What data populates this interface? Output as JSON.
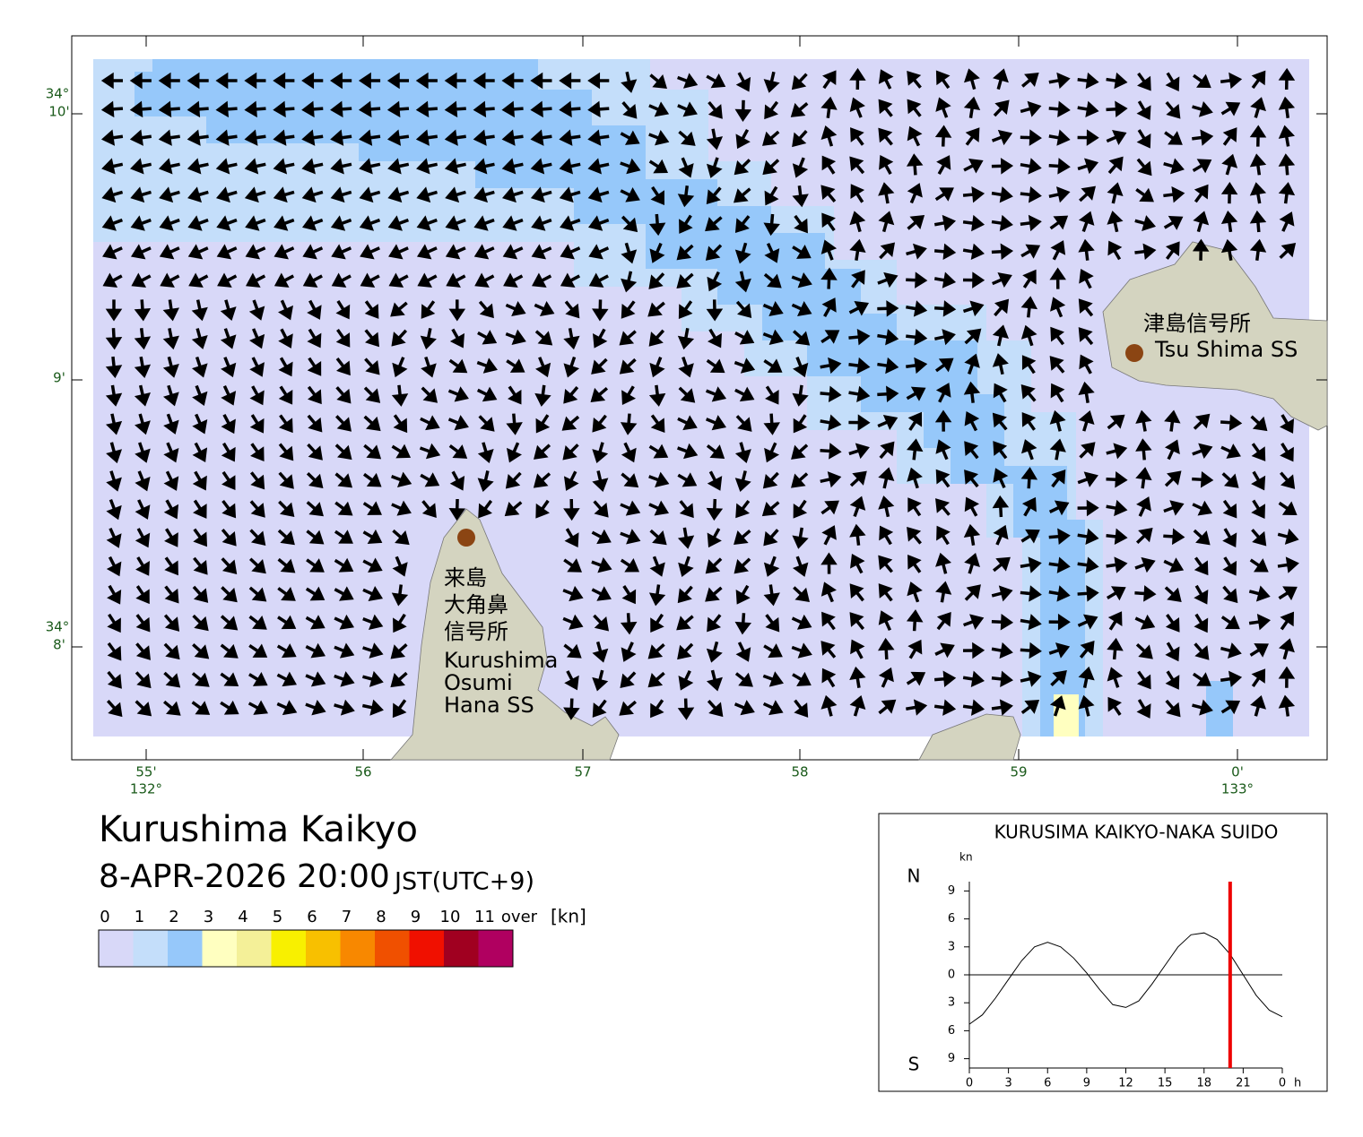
{
  "map": {
    "lat_labels": [
      {
        "deg": "34°",
        "min": "10'"
      },
      {
        "min": "9'"
      },
      {
        "deg": "34°",
        "min": "8'"
      }
    ],
    "lon_labels": [
      {
        "min": "55'",
        "deg": "132°"
      },
      {
        "min": "56"
      },
      {
        "min": "57"
      },
      {
        "min": "58"
      },
      {
        "min": "59"
      },
      {
        "min": "0'",
        "deg": "133°"
      }
    ],
    "places": [
      {
        "lines": [
          "津島信号所",
          "Tsu Shima SS"
        ]
      },
      {
        "lines": [
          "来島",
          "大角鼻",
          "信号所",
          "Kurushima",
          "Osumi",
          "Hana SS"
        ]
      }
    ]
  },
  "header": {
    "title": "Kurushima Kaikyo",
    "datetime": "8-APR-2026 20:00",
    "timezone": "JST(UTC+9)"
  },
  "legend": {
    "labels": [
      0,
      1,
      2,
      3,
      4,
      5,
      6,
      7,
      8,
      9,
      10,
      11,
      "over"
    ],
    "unit": "[kn]",
    "colors": [
      "#d8d8f8",
      "#c4defa",
      "#96c8fa",
      "#ffffc0",
      "#f4f098",
      "#f8f000",
      "#f8c000",
      "#f88800",
      "#f05000",
      "#f01000",
      "#a00020",
      "#b00060"
    ]
  },
  "chart_data": {
    "type": "line",
    "title": "KURUSIMA KAIKYO-NAKA SUIDO",
    "y_unit": "kn",
    "x_unit": "h",
    "north_label": "N",
    "south_label": "S",
    "x": [
      0,
      1,
      2,
      3,
      4,
      5,
      6,
      7,
      8,
      9,
      10,
      11,
      12,
      13,
      14,
      15,
      16,
      17,
      18,
      19,
      20,
      21,
      22,
      23,
      24
    ],
    "values": [
      -5.3,
      -4.3,
      -2.5,
      -0.5,
      1.5,
      3.0,
      3.5,
      3.0,
      1.8,
      0.2,
      -1.6,
      -3.2,
      -3.5,
      -2.8,
      -1.0,
      1.0,
      3.0,
      4.3,
      4.5,
      3.8,
      2.2,
      0.0,
      -2.2,
      -3.8,
      -4.5
    ],
    "color": "#000000",
    "current_hour": 20,
    "current_color": "#ee0000",
    "xlim": [
      0,
      24
    ],
    "ylim": [
      -10,
      10
    ],
    "xticks": [
      0,
      3,
      6,
      9,
      12,
      15,
      18,
      21,
      {
        "value": 24,
        "label": "0"
      }
    ],
    "yticks": [
      9,
      6,
      3,
      0,
      {
        "value": -3,
        "label": "3"
      },
      {
        "value": -6,
        "label": "6"
      },
      {
        "value": -9,
        "label": "9"
      }
    ]
  }
}
